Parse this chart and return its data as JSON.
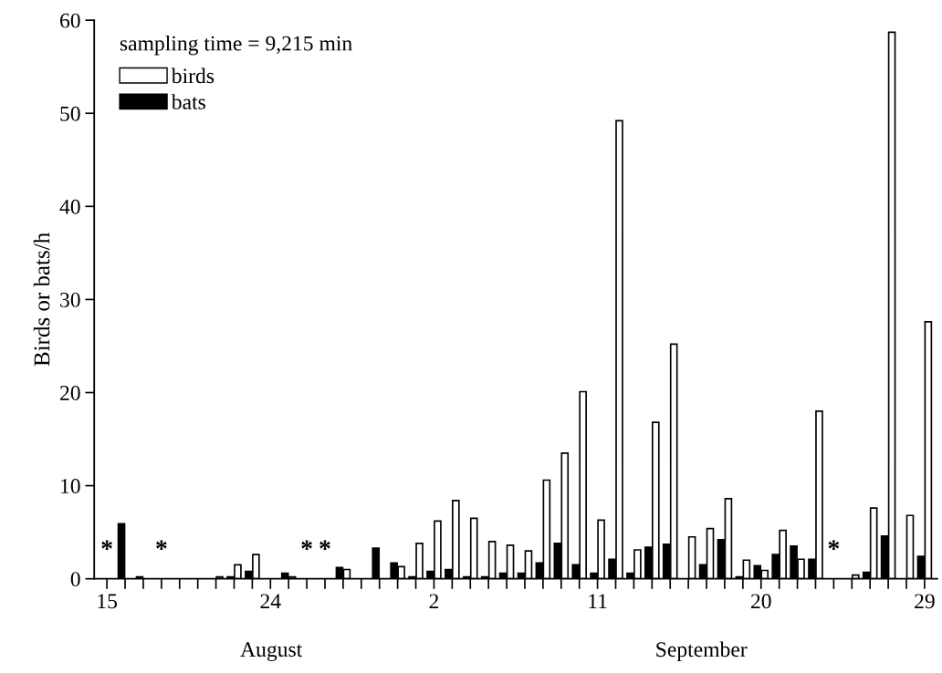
{
  "chart_data": {
    "type": "bar",
    "ylabel": "Birds or bats/h",
    "categories": [
      "15",
      null,
      null,
      null,
      null,
      null,
      null,
      null,
      null,
      "24",
      null,
      null,
      null,
      null,
      null,
      null,
      null,
      null,
      "2",
      null,
      null,
      null,
      null,
      null,
      null,
      null,
      null,
      "11",
      null,
      null,
      null,
      null,
      null,
      null,
      null,
      null,
      "20",
      null,
      null,
      null,
      null,
      null,
      null,
      null,
      null,
      "29"
    ],
    "series": [
      {
        "name": "birds",
        "color": "#ffffff",
        "values": [
          null,
          0,
          0,
          null,
          0,
          0,
          0.2,
          1.5,
          2.6,
          0,
          0.2,
          null,
          null,
          1.0,
          0,
          0,
          1.3,
          3.8,
          6.2,
          8.4,
          6.5,
          4.0,
          3.6,
          3.0,
          10.6,
          13.5,
          20.1,
          6.3,
          49.2,
          3.1,
          16.8,
          25.2,
          4.5,
          5.4,
          8.6,
          2.0,
          0.9,
          5.2,
          2.1,
          18.0,
          null,
          0.4,
          7.6,
          58.7,
          6.8,
          27.6
        ]
      },
      {
        "name": "bats",
        "color": "#000000",
        "values": [
          null,
          5.9,
          0.2,
          null,
          0,
          0,
          0,
          0.2,
          0.8,
          0,
          0.6,
          null,
          null,
          1.2,
          0,
          3.3,
          1.7,
          0.2,
          0.8,
          1.0,
          0.2,
          0.2,
          0.6,
          0.6,
          1.7,
          3.8,
          1.5,
          0.6,
          2.1,
          0.6,
          3.4,
          3.7,
          0,
          1.5,
          4.2,
          0.2,
          1.4,
          2.6,
          3.5,
          2.1,
          null,
          0,
          0.7,
          4.6,
          0,
          2.4
        ]
      }
    ],
    "ylim": [
      0,
      60
    ],
    "yticks": [
      0,
      10,
      20,
      30,
      40,
      50,
      60
    ],
    "grid": false,
    "legend": "top left",
    "annotations": [
      "August",
      "September",
      "sampling time = 9,215 min",
      "*",
      "*",
      "*",
      "*",
      "*"
    ]
  }
}
